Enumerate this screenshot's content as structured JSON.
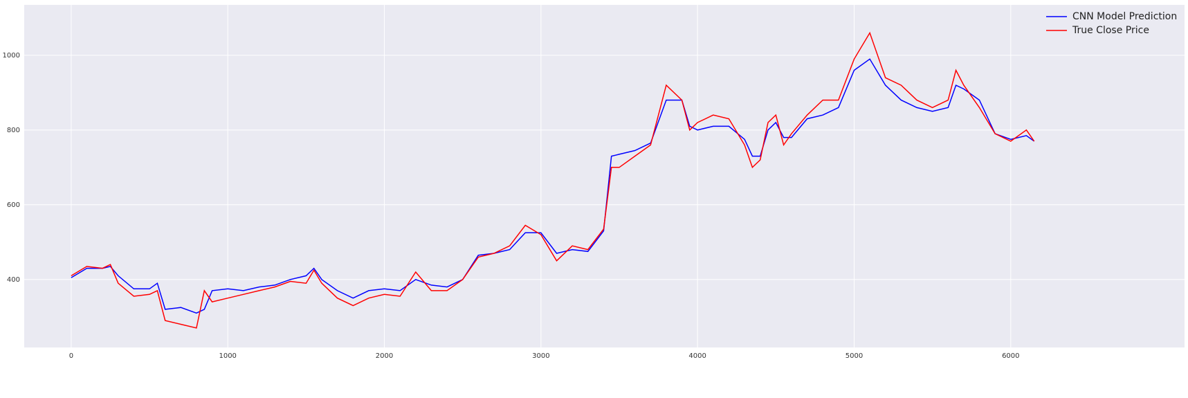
{
  "chart_data": {
    "type": "line",
    "x": [
      0,
      100,
      200,
      250,
      300,
      400,
      500,
      550,
      600,
      700,
      800,
      850,
      900,
      1000,
      1100,
      1200,
      1300,
      1400,
      1500,
      1550,
      1600,
      1700,
      1800,
      1900,
      2000,
      2100,
      2200,
      2300,
      2400,
      2500,
      2600,
      2700,
      2800,
      2900,
      3000,
      3100,
      3200,
      3300,
      3400,
      3450,
      3500,
      3600,
      3700,
      3800,
      3900,
      3950,
      4000,
      4100,
      4200,
      4300,
      4350,
      4400,
      4450,
      4500,
      4550,
      4600,
      4700,
      4800,
      4900,
      5000,
      5100,
      5200,
      5300,
      5400,
      5500,
      5600,
      5650,
      5700,
      5800,
      5900,
      6000,
      6100,
      6150
    ],
    "series": [
      {
        "name": "CNN Model Prediction",
        "color": "#0000ff",
        "values": [
          405,
          430,
          430,
          435,
          410,
          375,
          375,
          390,
          320,
          325,
          310,
          320,
          370,
          375,
          370,
          380,
          385,
          400,
          410,
          430,
          400,
          370,
          350,
          370,
          375,
          370,
          400,
          385,
          380,
          400,
          465,
          470,
          480,
          525,
          525,
          470,
          480,
          475,
          530,
          730,
          735,
          745,
          765,
          880,
          880,
          810,
          800,
          810,
          810,
          775,
          730,
          730,
          800,
          820,
          780,
          780,
          830,
          840,
          860,
          960,
          990,
          920,
          880,
          860,
          850,
          860,
          920,
          910,
          880,
          790,
          775,
          785,
          770
        ]
      },
      {
        "name": "True Close Price",
        "color": "#ff0000",
        "values": [
          410,
          435,
          430,
          440,
          390,
          355,
          360,
          370,
          290,
          280,
          270,
          370,
          340,
          350,
          360,
          370,
          380,
          395,
          390,
          425,
          390,
          350,
          330,
          350,
          360,
          355,
          420,
          370,
          370,
          400,
          460,
          470,
          490,
          545,
          520,
          450,
          490,
          480,
          535,
          700,
          700,
          730,
          760,
          920,
          880,
          800,
          820,
          840,
          830,
          760,
          700,
          720,
          820,
          840,
          760,
          790,
          840,
          880,
          880,
          990,
          1060,
          940,
          920,
          880,
          860,
          880,
          960,
          920,
          860,
          790,
          770,
          800,
          770
        ]
      }
    ],
    "xlim": [
      -300,
      7110
    ],
    "ylim": [
      218,
      1135
    ],
    "xticks": [
      0,
      1000,
      2000,
      3000,
      4000,
      5000,
      6000
    ],
    "yticks": [
      400,
      600,
      800,
      1000
    ],
    "grid": true,
    "legend": "upper right"
  }
}
